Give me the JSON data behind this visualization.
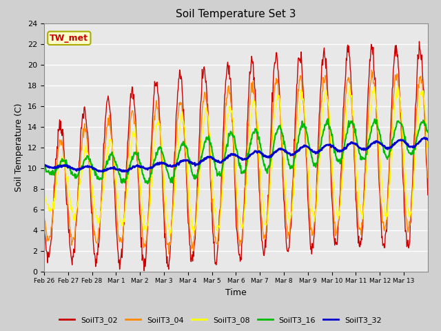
{
  "title": "Soil Temperature Set 3",
  "xlabel": "Time",
  "ylabel": "Soil Temperature (C)",
  "ylim": [
    0,
    24
  ],
  "yticks": [
    0,
    2,
    4,
    6,
    8,
    10,
    12,
    14,
    16,
    18,
    20,
    22,
    24
  ],
  "fig_bg": "#d0d0d0",
  "plot_bg": "#e8e8e8",
  "annotation_text": "TW_met",
  "annotation_bg": "#ffffcc",
  "annotation_border": "#aaaa00",
  "series_colors": [
    "#cc0000",
    "#ff8800",
    "#ffff00",
    "#00bb00",
    "#0000cc"
  ],
  "series_lw": [
    1.0,
    1.0,
    1.0,
    1.5,
    2.0
  ],
  "legend_labels": [
    "SoilT3_02",
    "SoilT3_04",
    "SoilT3_08",
    "SoilT3_16",
    "SoilT3_32"
  ],
  "xtick_labels": [
    "Feb 26",
    "Feb 27",
    "Feb 28",
    "Mar 1",
    "Mar 2",
    "Mar 3",
    "Mar 4",
    "Mar 5",
    "Mar 6",
    "Mar 7",
    "Mar 8",
    "Mar 9",
    "Mar 10",
    "Mar 11",
    "Mar 12",
    "Mar 13"
  ],
  "num_days": 16,
  "ppd": 48
}
